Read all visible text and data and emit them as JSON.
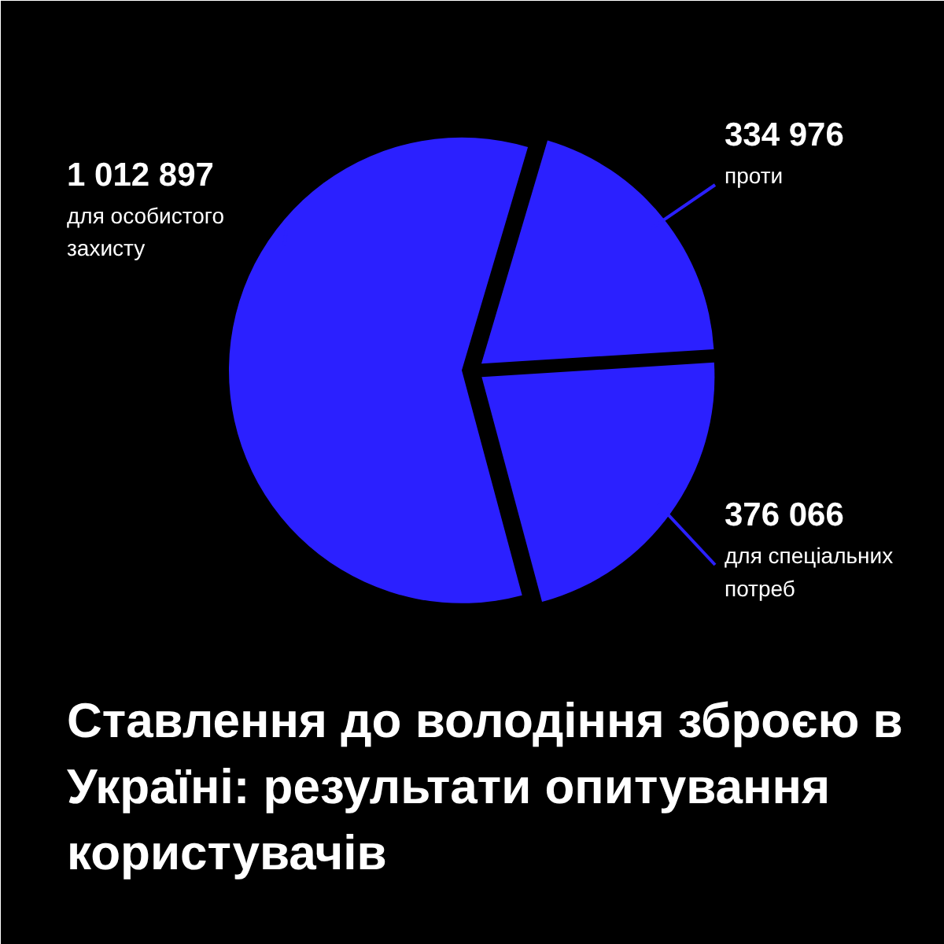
{
  "chart_data": {
    "type": "pie",
    "title": "Ставлення до володіння зброєю в Україні: результати опитування користувачів",
    "categories": [
      "проти",
      "для спеціальних потреб",
      "для особистого захисту"
    ],
    "values": [
      334976,
      376066,
      1012897
    ],
    "value_labels": [
      "334 976",
      "376 066",
      "1 012 897"
    ],
    "colors": [
      "#2b20ff",
      "#2b20ff",
      "#2b20ff"
    ]
  }
}
